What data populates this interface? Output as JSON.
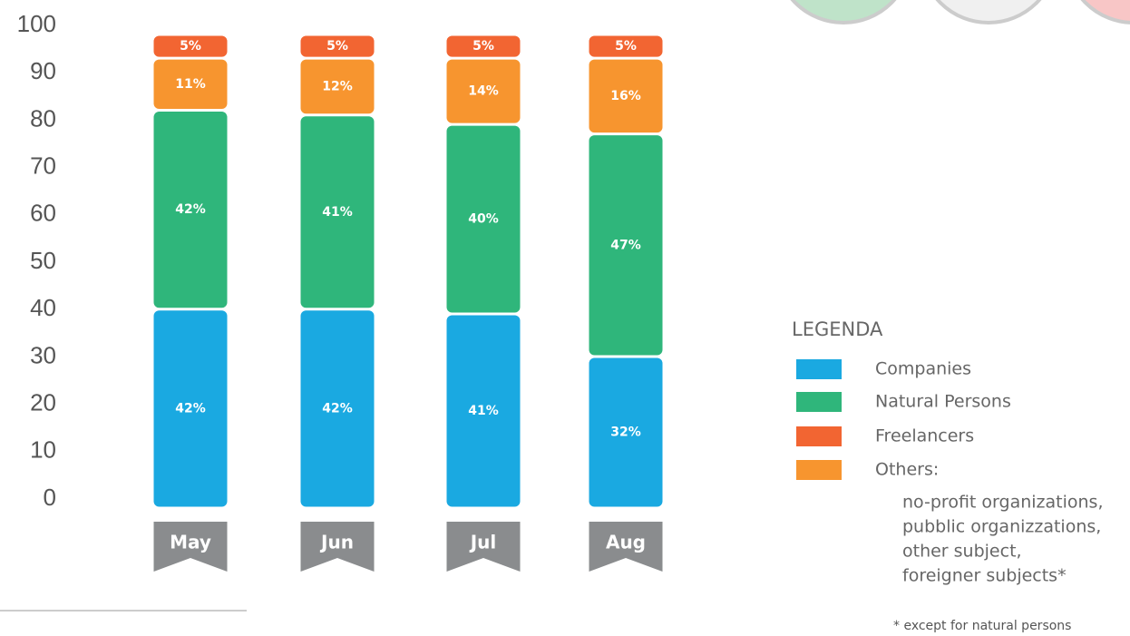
{
  "chart_data": {
    "type": "stacked_bar",
    "categories": [
      "May",
      "Jun",
      "Jul",
      "Aug"
    ],
    "series": [
      {
        "name": "Companies",
        "color": "#1aa9e1",
        "values": [
          42,
          42,
          41,
          32
        ],
        "value_labels": [
          "42%",
          "42%",
          "41%",
          "32%"
        ]
      },
      {
        "name": "Natural Persons",
        "color": "#2fb67b",
        "values": [
          42,
          41,
          40,
          47
        ],
        "value_labels": [
          "42%",
          "41%",
          "40%",
          "47%"
        ]
      },
      {
        "name": "Freelancers",
        "color": "#f26532",
        "values": [
          5,
          5,
          5,
          5
        ],
        "value_labels": [
          "5%",
          "5%",
          "5%",
          "5%"
        ]
      },
      {
        "name": "Others:",
        "color": "#f7952f",
        "values": [
          11,
          12,
          14,
          16
        ],
        "value_labels": [
          "11%",
          "12%",
          "14%",
          "16%"
        ]
      }
    ],
    "ylim": [
      0,
      100
    ],
    "yticks": [
      0,
      10,
      20,
      30,
      40,
      50,
      60,
      70,
      80,
      90,
      100
    ],
    "legend_title": "LEGENDA",
    "others_note": [
      "no-profit organizations,",
      "pubblic organizzations,",
      "other subject,",
      "foreigner subjects*"
    ],
    "footnote": "* except for natural persons"
  }
}
